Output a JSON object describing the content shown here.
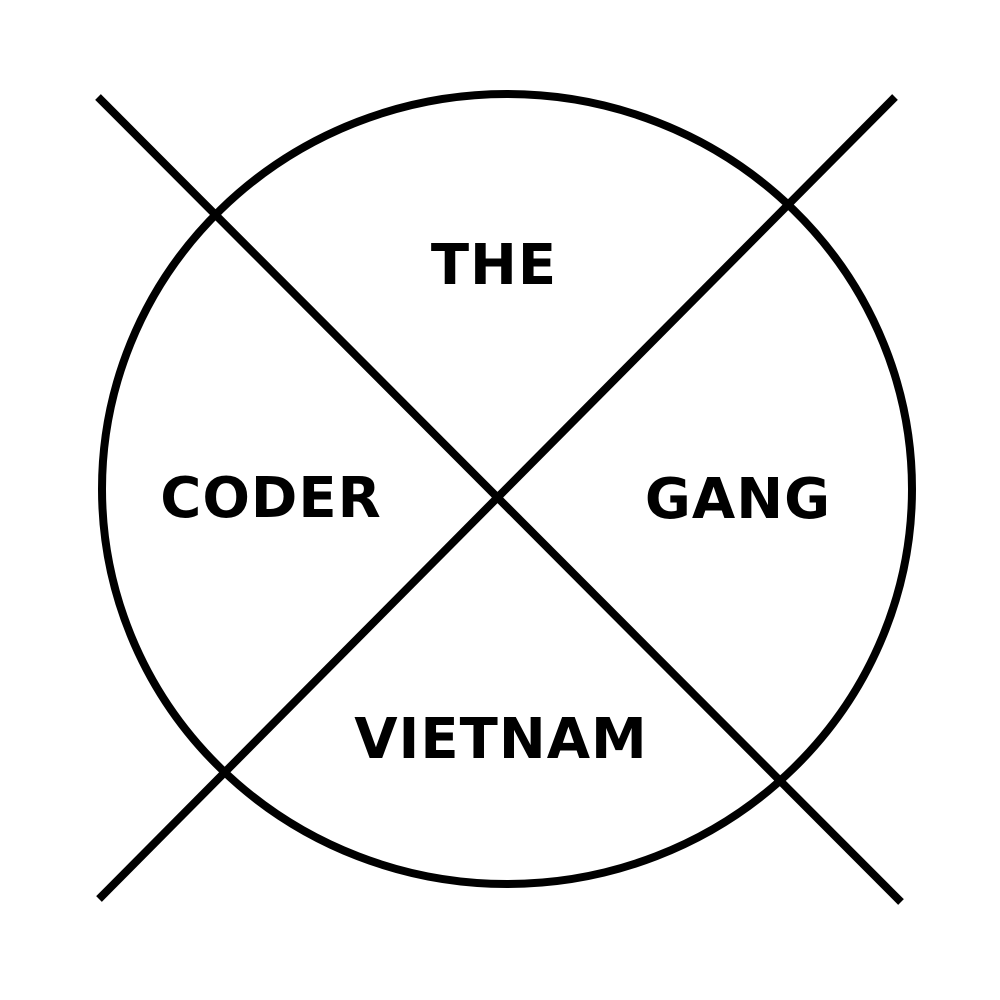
{
  "logo": {
    "words": {
      "top": "THE",
      "left": "CODER",
      "right": "GANG",
      "bottom": "VIETNAM"
    },
    "colors": {
      "ink": "#000000",
      "background": "#ffffff"
    }
  }
}
